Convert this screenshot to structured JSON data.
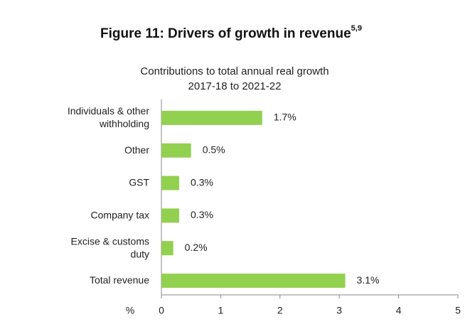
{
  "chart_data": {
    "type": "hbar",
    "title": "Figure 11: Drivers of growth in revenue",
    "title_superscript": "5,9",
    "subtitle": [
      "Contributions to total annual real growth",
      "2017-18 to 2021-22"
    ],
    "categories": [
      "Individuals & other withholding",
      "Other",
      "GST",
      "Company tax",
      "Excise & customs duty",
      "Total revenue"
    ],
    "values": [
      1.7,
      0.5,
      0.3,
      0.3,
      0.2,
      3.1
    ],
    "value_labels": [
      "1.7%",
      "0.5%",
      "0.3%",
      "0.3%",
      "0.2%",
      "3.1%"
    ],
    "color": "#92d050",
    "xlabel": "%",
    "xlim": [
      0,
      5
    ],
    "xticks": [
      0,
      1,
      2,
      3,
      4,
      5
    ]
  }
}
